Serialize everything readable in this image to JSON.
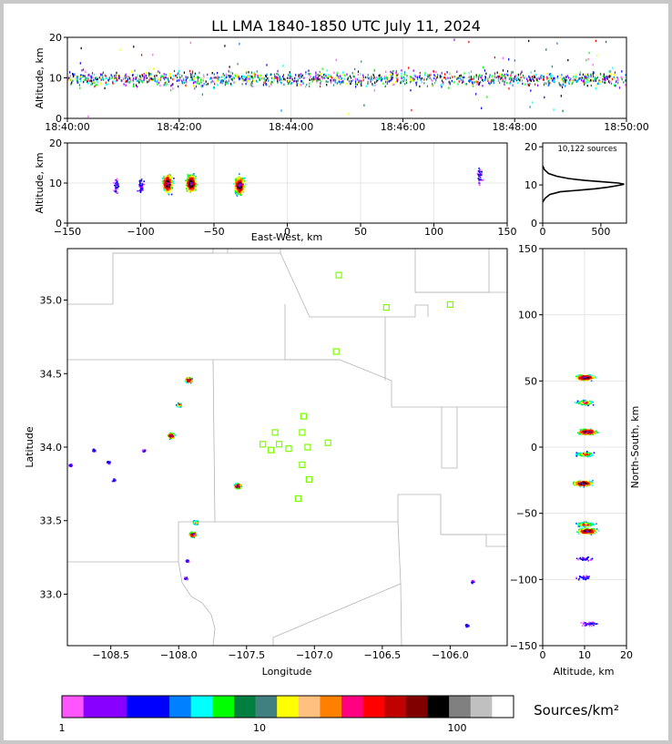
{
  "title": "LL LMA 1840-1850 UTC July 11, 2024",
  "colors": {
    "frame_border": "#c8c8c8",
    "station": "#7cfc00",
    "county_line": "#b4b4b4",
    "colorbar": [
      "#ff55ff",
      "#8800ff",
      "#8800ff",
      "#0000ff",
      "#0000ff",
      "#0080ff",
      "#00ffff",
      "#00ff00",
      "#008040",
      "#408080",
      "#ffff00",
      "#ffc080",
      "#ff8000",
      "#ff0080",
      "#ff0000",
      "#c00000",
      "#800000",
      "#000000",
      "#808080",
      "#c0c0c0",
      "#ffffff"
    ]
  },
  "chart_data": [
    {
      "panel": "time-height",
      "type": "scatter",
      "ylabel": "Altitude, km",
      "xlabel": "",
      "x_ticks": [
        "18:40:00",
        "18:42:00",
        "18:44:00",
        "18:46:00",
        "18:48:00",
        "18:50:00"
      ],
      "xlim": [
        "18:40:00",
        "18:50:00"
      ],
      "y_ticks": [
        0,
        10,
        20
      ],
      "ylim": [
        0,
        20
      ],
      "grid": true,
      "note": "sources continuous throughout 18:40-18:50, concentrated between ~7 and ~13 km"
    },
    {
      "panel": "east-west vs altitude",
      "type": "scatter",
      "xlabel": "East-West, km",
      "ylabel": "Altitude, km",
      "xlim": [
        -150,
        150
      ],
      "x_ticks": [
        -150,
        -100,
        -50,
        0,
        50,
        100,
        150
      ],
      "ylim": [
        0,
        20
      ],
      "y_ticks": [
        0,
        10,
        20
      ],
      "grid": true,
      "clusters_km": [
        {
          "x": -82,
          "alt": 10,
          "density": "high"
        },
        {
          "x": -66,
          "alt": 10,
          "density": "high"
        },
        {
          "x": -33,
          "alt": 9.5,
          "density": "high"
        },
        {
          "x": -117,
          "alt": 9.5,
          "density": "low"
        },
        {
          "x": -100,
          "alt": 9.5,
          "density": "low"
        },
        {
          "x": 131,
          "alt": 12,
          "density": "low"
        }
      ]
    },
    {
      "panel": "altitude histogram",
      "type": "line",
      "annotation": "10,122 sources",
      "x_ticks": [
        0,
        500
      ],
      "xlim": [
        0,
        720
      ],
      "y_ticks": [
        0,
        10,
        20
      ],
      "ylim": [
        0,
        21
      ],
      "profile": [
        [
          0,
          5.5
        ],
        [
          20,
          6.5
        ],
        [
          60,
          7.5
        ],
        [
          150,
          8.2
        ],
        [
          300,
          8.6
        ],
        [
          450,
          9
        ],
        [
          560,
          9.4
        ],
        [
          640,
          9.8
        ],
        [
          700,
          10.2
        ],
        [
          650,
          10.5
        ],
        [
          520,
          10.8
        ],
        [
          360,
          11.2
        ],
        [
          220,
          11.7
        ],
        [
          120,
          12.3
        ],
        [
          50,
          13
        ],
        [
          15,
          14
        ],
        [
          0,
          15
        ]
      ]
    },
    {
      "panel": "plan view",
      "type": "scatter",
      "xlabel": "Longitude",
      "ylabel": "Latitude",
      "xlim": [
        -108.82,
        -105.58
      ],
      "x_ticks": [
        -108.5,
        -108.0,
        -107.5,
        -107.0,
        -106.5,
        -106.0
      ],
      "ylim": [
        32.65,
        35.35
      ],
      "y_ticks": [
        33.0,
        33.5,
        34.0,
        34.5,
        35.0
      ],
      "stations": [
        [
          -106.82,
          35.17
        ],
        [
          -106.47,
          34.95
        ],
        [
          -106.0,
          34.97
        ],
        [
          -106.84,
          34.65
        ],
        [
          -107.08,
          34.21
        ],
        [
          -107.29,
          34.1
        ],
        [
          -107.09,
          34.1
        ],
        [
          -107.38,
          34.02
        ],
        [
          -107.26,
          34.02
        ],
        [
          -107.32,
          33.98
        ],
        [
          -107.19,
          33.99
        ],
        [
          -107.05,
          34.0
        ],
        [
          -106.9,
          34.03
        ],
        [
          -107.09,
          33.88
        ],
        [
          -107.04,
          33.78
        ],
        [
          -107.12,
          33.65
        ]
      ],
      "clusters": [
        {
          "lon": -107.93,
          "lat": 34.46,
          "density": "high"
        },
        {
          "lon": -108.0,
          "lat": 34.29,
          "density": "medium"
        },
        {
          "lon": -108.06,
          "lat": 34.08,
          "density": "high"
        },
        {
          "lon": -108.26,
          "lat": 33.98,
          "density": "low"
        },
        {
          "lon": -108.52,
          "lat": 33.9,
          "density": "low"
        },
        {
          "lon": -108.48,
          "lat": 33.78,
          "density": "low"
        },
        {
          "lon": -108.63,
          "lat": 33.98,
          "density": "low"
        },
        {
          "lon": -108.8,
          "lat": 33.88,
          "density": "low"
        },
        {
          "lon": -107.57,
          "lat": 33.74,
          "density": "high"
        },
        {
          "lon": -107.88,
          "lat": 33.49,
          "density": "medium"
        },
        {
          "lon": -107.9,
          "lat": 33.41,
          "density": "high"
        },
        {
          "lon": -107.94,
          "lat": 33.23,
          "density": "low"
        },
        {
          "lon": -107.95,
          "lat": 33.11,
          "density": "low"
        },
        {
          "lon": -105.84,
          "lat": 33.09,
          "density": "low"
        },
        {
          "lon": -105.88,
          "lat": 32.79,
          "density": "low"
        }
      ]
    },
    {
      "panel": "altitude vs north-south",
      "type": "scatter",
      "xlabel": "Altitude, km",
      "ylabel": "North-South, km",
      "xlim": [
        0,
        20
      ],
      "x_ticks": [
        0,
        10,
        20
      ],
      "ylim": [
        -150,
        150
      ],
      "y_ticks": [
        -150,
        -100,
        -50,
        0,
        50,
        100,
        150
      ],
      "clusters_km": [
        {
          "ns": 53,
          "alt": 10,
          "density": "high"
        },
        {
          "ns": 34,
          "alt": 10,
          "density": "medium"
        },
        {
          "ns": 12,
          "alt": 10.5,
          "density": "high"
        },
        {
          "ns": -5,
          "alt": 10,
          "density": "medium"
        },
        {
          "ns": -27,
          "alt": 9.5,
          "density": "high"
        },
        {
          "ns": -58,
          "alt": 10,
          "density": "medium"
        },
        {
          "ns": -63,
          "alt": 10.5,
          "density": "high"
        },
        {
          "ns": -84,
          "alt": 10,
          "density": "low"
        },
        {
          "ns": -98,
          "alt": 10,
          "density": "low"
        },
        {
          "ns": -133,
          "alt": 11,
          "density": "low"
        }
      ]
    },
    {
      "panel": "colorbar",
      "type": "heatmap",
      "label": "Sources/km²",
      "tick_labels": [
        "1",
        "10",
        "100"
      ],
      "scale": "log"
    }
  ]
}
